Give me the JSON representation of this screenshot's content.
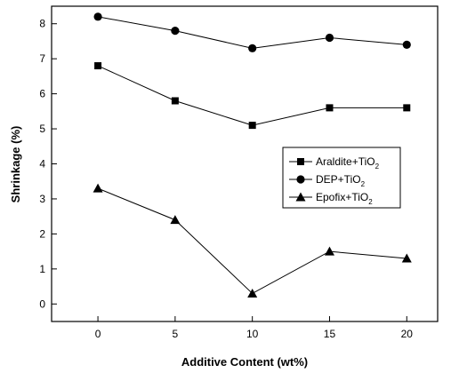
{
  "chart_data": {
    "type": "line",
    "xlabel": "Additive Content (wt%)",
    "ylabel": "Shrinkage (%)",
    "xlim": [
      -3,
      22
    ],
    "ylim": [
      -0.5,
      8.5
    ],
    "x_ticks": [
      0,
      5,
      10,
      15,
      20
    ],
    "y_ticks": [
      0,
      1,
      2,
      3,
      4,
      5,
      6,
      7,
      8
    ],
    "grid": false,
    "legend_position": "right",
    "series": [
      {
        "name_main": "Araldite+TiO",
        "name_sub": "2",
        "marker": "square",
        "x": [
          0,
          5,
          10,
          15,
          20
        ],
        "values": [
          6.8,
          5.8,
          5.1,
          5.6,
          5.6
        ]
      },
      {
        "name_main": "DEP+TiO",
        "name_sub": "2",
        "marker": "circle",
        "x": [
          0,
          5,
          10,
          15,
          20
        ],
        "values": [
          8.2,
          7.8,
          7.3,
          7.6,
          7.4
        ]
      },
      {
        "name_main": "Epofix+TiO",
        "name_sub": "2",
        "marker": "triangle",
        "x": [
          0,
          5,
          10,
          15,
          20
        ],
        "values": [
          3.3,
          2.4,
          0.3,
          1.5,
          1.3
        ]
      }
    ],
    "colors": {
      "line": "#000000",
      "marker": "#000000",
      "background": "#ffffff"
    }
  }
}
